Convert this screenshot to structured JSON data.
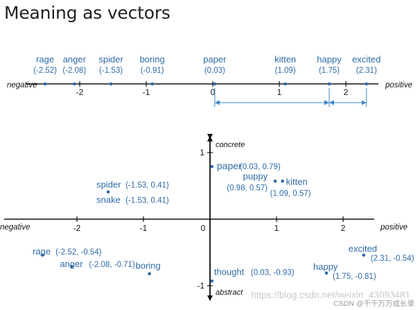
{
  "title": "Meaning as vectors",
  "line": {
    "negative_label": "negative",
    "positive_label": "positive",
    "ticks": [
      {
        "value": -2,
        "label": "-2"
      },
      {
        "value": -1,
        "label": "-1"
      },
      {
        "value": 0,
        "label": "0"
      },
      {
        "value": 1,
        "label": "1"
      },
      {
        "value": 2,
        "label": "2"
      }
    ],
    "words": [
      {
        "word": "rage",
        "value_label": "(-2.52)",
        "value": -2.52
      },
      {
        "word": "anger",
        "value_label": "(-2.08)",
        "value": -2.08
      },
      {
        "word": "spider",
        "value_label": "(-1.53)",
        "value": -1.53
      },
      {
        "word": "boring",
        "value_label": "(-0.91)",
        "value": -0.91
      },
      {
        "word": "paper",
        "value_label": "(0.03)",
        "value": 0.03
      },
      {
        "word": "kitten",
        "value_label": "(1.09)",
        "value": 1.09
      },
      {
        "word": "happy",
        "value_label": "(1.75)",
        "value": 1.75
      },
      {
        "word": "excited",
        "value_label": "(2.31)",
        "value": 2.31
      }
    ]
  },
  "plane": {
    "negative_label": "negative",
    "positive_label": "positive",
    "concrete_label": "concrete",
    "abstract_label": "abstract",
    "x_ticks": [
      {
        "value": -2,
        "label": "-2"
      },
      {
        "value": -1,
        "label": "-1"
      },
      {
        "value": 0,
        "label": "0"
      },
      {
        "value": 1,
        "label": "1"
      },
      {
        "value": 2,
        "label": "2"
      }
    ],
    "y_ticks": [
      {
        "value": 1,
        "label": "1"
      },
      {
        "value": -1,
        "label": "-1"
      }
    ],
    "points": [
      {
        "word": "paper",
        "coords_label": "(0.03, 0.79)",
        "x": 0.03,
        "y": 0.79
      },
      {
        "word": "puppy",
        "coords_label": "(0.98, 0.57)",
        "x": 0.98,
        "y": 0.57
      },
      {
        "word": "kitten",
        "coords_label": "(1.09, 0.57)",
        "x": 1.09,
        "y": 0.57
      },
      {
        "word": "spider",
        "coords_label": "(-1.53, 0.41)",
        "x": -1.53,
        "y": 0.41
      },
      {
        "word": "snake",
        "coords_label": "(-1.53, 0.41)",
        "x": -1.53,
        "y": 0.41
      },
      {
        "word": "rage",
        "coords_label": "(-2.52, -0.54)",
        "x": -2.52,
        "y": -0.54
      },
      {
        "word": "anger",
        "coords_label": "(-2.08, -0.71)",
        "x": -2.08,
        "y": -0.71
      },
      {
        "word": "boring",
        "coords_label": "",
        "x": -0.91,
        "y": -0.82
      },
      {
        "word": "thought",
        "coords_label": "(0.03, -0.93)",
        "x": 0.03,
        "y": -0.93
      },
      {
        "word": "excited",
        "coords_label": "(2.31, -0.54)",
        "x": 2.31,
        "y": -0.54
      },
      {
        "word": "happy",
        "coords_label": "(1.75, -0.81)",
        "x": 1.75,
        "y": -0.81
      }
    ]
  },
  "watermark": "https://blog.csdn.net/weixin_43093481",
  "credit": "CSDN @千千万万成长录"
}
